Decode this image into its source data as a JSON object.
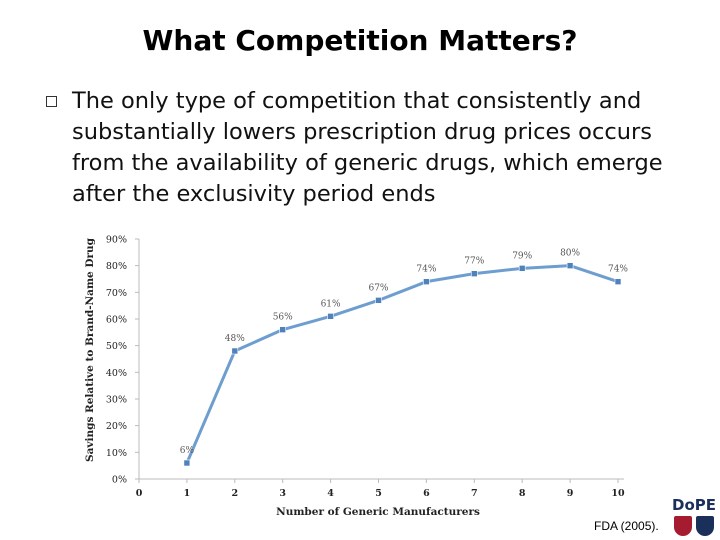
{
  "slide": {
    "title": "What Competition Matters?",
    "bullet": "The only type of competition that consistently and substantially lowers prescription drug prices occurs from the availability of generic drugs, which emerge after the exclusivity period ends",
    "source": "FDA (2005).",
    "logo_text": "DoPE"
  },
  "chart_data": {
    "type": "line",
    "title": "",
    "xlabel": "Number of Generic Manufacturers",
    "ylabel": "Savings Relative to Brand-Name Drug",
    "x": [
      1,
      2,
      3,
      4,
      5,
      6,
      7,
      8,
      9,
      10
    ],
    "values": [
      6,
      48,
      56,
      61,
      67,
      74,
      77,
      79,
      80,
      74
    ],
    "data_labels": [
      "6%",
      "48%",
      "56%",
      "61%",
      "67%",
      "74%",
      "77%",
      "79%",
      "80%",
      "74%"
    ],
    "xticks": [
      "0",
      "1",
      "2",
      "3",
      "4",
      "5",
      "6",
      "7",
      "8",
      "9",
      "10"
    ],
    "yticks": [
      "0%",
      "10%",
      "20%",
      "30%",
      "40%",
      "50%",
      "60%",
      "70%",
      "80%",
      "90%"
    ],
    "xlim": [
      0,
      10
    ],
    "ylim": [
      0,
      90
    ],
    "line_color": "#6d9ecf",
    "marker_color": "#4f81bd",
    "label_color": "#555555",
    "grid": false
  }
}
